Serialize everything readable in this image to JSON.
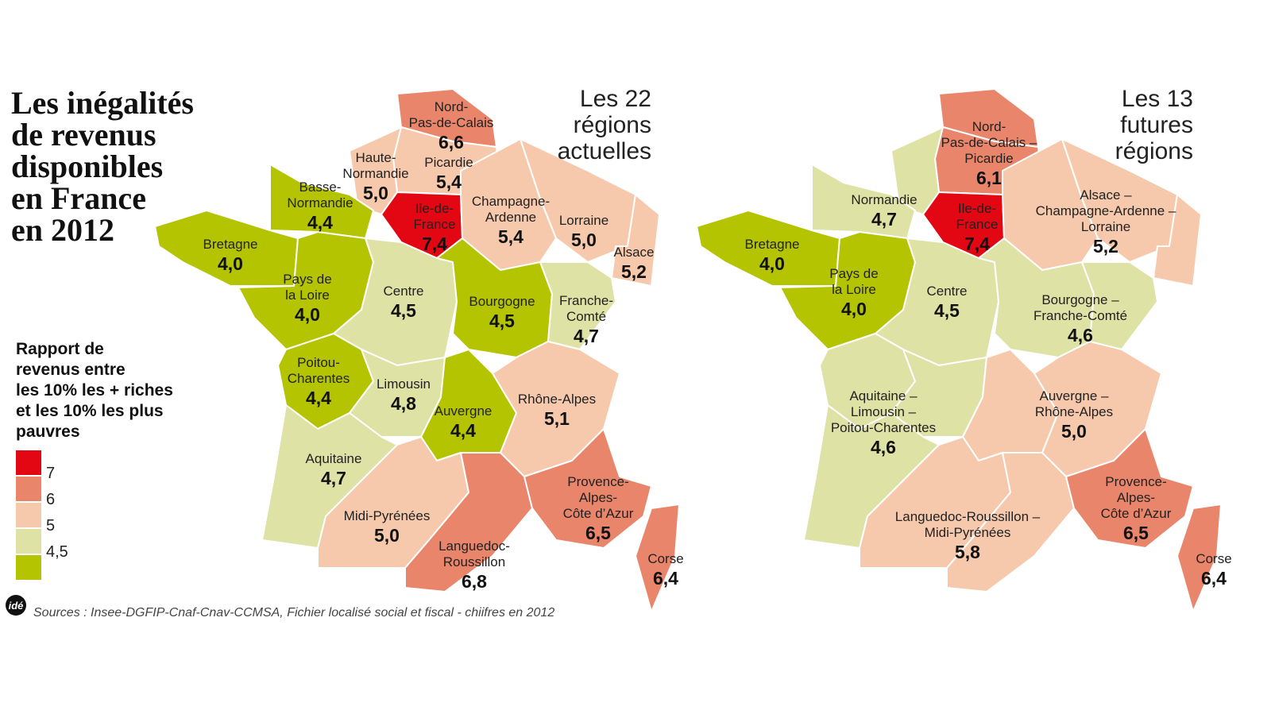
{
  "title": [
    "Les inégalités",
    "de revenus",
    "disponibles",
    "en France",
    "en 2012"
  ],
  "legend": {
    "title": [
      "Rapport de",
      "revenus entre",
      "les 10% les + riches",
      "et les 10% les plus",
      "pauvres"
    ],
    "items": [
      {
        "label": "7",
        "color": "#e30613"
      },
      {
        "label": "6",
        "color": "#e8856a"
      },
      {
        "label": "5",
        "color": "#f6c9ad"
      },
      {
        "label": "4,5",
        "color": "#dfe2a5"
      },
      {
        "color": "#b5c400"
      }
    ]
  },
  "maps": [
    {
      "title": [
        "Les 22",
        "régions",
        "actuelles"
      ],
      "regions": [
        {
          "name": [
            "Nord-",
            "Pas-de-Calais"
          ],
          "value": "6,6",
          "color": "#e8856a"
        },
        {
          "name": [
            "Picardie"
          ],
          "value": "5,4",
          "color": "#f6c9ad"
        },
        {
          "name": [
            "Haute-",
            "Normandie"
          ],
          "value": "5,0",
          "color": "#f6c9ad"
        },
        {
          "name": [
            "Basse-",
            "Normandie"
          ],
          "value": "4,4",
          "color": "#b5c400"
        },
        {
          "name": [
            "Bretagne"
          ],
          "value": "4,0",
          "color": "#b5c400"
        },
        {
          "name": [
            "Ile-de-",
            "France"
          ],
          "value": "7,4",
          "color": "#e30613"
        },
        {
          "name": [
            "Champagne-",
            "Ardenne"
          ],
          "value": "5,4",
          "color": "#f6c9ad"
        },
        {
          "name": [
            "Lorraine"
          ],
          "value": "5,0",
          "color": "#f6c9ad"
        },
        {
          "name": [
            "Alsace"
          ],
          "value": "5,2",
          "color": "#f6c9ad"
        },
        {
          "name": [
            "Pays de",
            "la Loire"
          ],
          "value": "4,0",
          "color": "#b5c400"
        },
        {
          "name": [
            "Centre"
          ],
          "value": "4,5",
          "color": "#dfe2a5"
        },
        {
          "name": [
            "Bourgogne"
          ],
          "value": "4,5",
          "color": "#b5c400"
        },
        {
          "name": [
            "Franche-",
            "Comté"
          ],
          "value": "4,7",
          "color": "#dfe2a5"
        },
        {
          "name": [
            "Poitou-",
            "Charentes"
          ],
          "value": "4,4",
          "color": "#b5c400"
        },
        {
          "name": [
            "Limousin"
          ],
          "value": "4,8",
          "color": "#dfe2a5"
        },
        {
          "name": [
            "Auvergne"
          ],
          "value": "4,4",
          "color": "#b5c400"
        },
        {
          "name": [
            "Rhône-Alpes"
          ],
          "value": "5,1",
          "color": "#f6c9ad"
        },
        {
          "name": [
            "Aquitaine"
          ],
          "value": "4,7",
          "color": "#dfe2a5"
        },
        {
          "name": [
            "Midi-Pyrénées"
          ],
          "value": "5,0",
          "color": "#f6c9ad"
        },
        {
          "name": [
            "Languedoc-",
            "Roussillon"
          ],
          "value": "6,8",
          "color": "#e8856a"
        },
        {
          "name": [
            "Provence-",
            "Alpes-",
            "Côte d’Azur"
          ],
          "value": "6,5",
          "color": "#e8856a"
        },
        {
          "name": [
            "Corse"
          ],
          "value": "6,4",
          "color": "#e8856a"
        }
      ]
    },
    {
      "title": [
        "Les 13",
        "futures",
        "régions"
      ],
      "regions": [
        {
          "name": [
            "Nord-",
            "Pas-de-Calais –",
            "Picardie"
          ],
          "value": "6,1",
          "color": "#e8856a"
        },
        {
          "name": [
            "Normandie"
          ],
          "value": "4,7",
          "color": "#dfe2a5"
        },
        {
          "name": [
            "Bretagne"
          ],
          "value": "4,0",
          "color": "#b5c400"
        },
        {
          "name": [
            "Ile-de-",
            "France"
          ],
          "value": "7,4",
          "color": "#e30613"
        },
        {
          "name": [
            "Alsace –",
            "Champagne-Ardenne –",
            "Lorraine"
          ],
          "value": "5,2",
          "color": "#f6c9ad"
        },
        {
          "name": [
            "Pays de",
            "la Loire"
          ],
          "value": "4,0",
          "color": "#b5c400"
        },
        {
          "name": [
            "Centre"
          ],
          "value": "4,5",
          "color": "#dfe2a5"
        },
        {
          "name": [
            "Bourgogne –",
            "Franche-Comté"
          ],
          "value": "4,6",
          "color": "#dfe2a5"
        },
        {
          "name": [
            "Aquitaine –",
            "Limousin –",
            "Poitou-Charentes"
          ],
          "value": "4,6",
          "color": "#dfe2a5"
        },
        {
          "name": [
            "Auvergne –",
            "Rhône-Alpes"
          ],
          "value": "5,0",
          "color": "#f6c9ad"
        },
        {
          "name": [
            "Languedoc-Roussillon –",
            "Midi-Pyrénées"
          ],
          "value": "5,8",
          "color": "#f6c9ad"
        },
        {
          "name": [
            "Provence-",
            "Alpes-",
            "Côte d’Azur"
          ],
          "value": "6,5",
          "color": "#e8856a"
        },
        {
          "name": [
            "Corse"
          ],
          "value": "6,4",
          "color": "#e8856a"
        }
      ]
    }
  ],
  "logo": "idé",
  "source": "Sources :  Insee-DGFIP-Cnaf-Cnav-CCMSA, Fichier localisé social et fiscal - chiifres en 2012"
}
